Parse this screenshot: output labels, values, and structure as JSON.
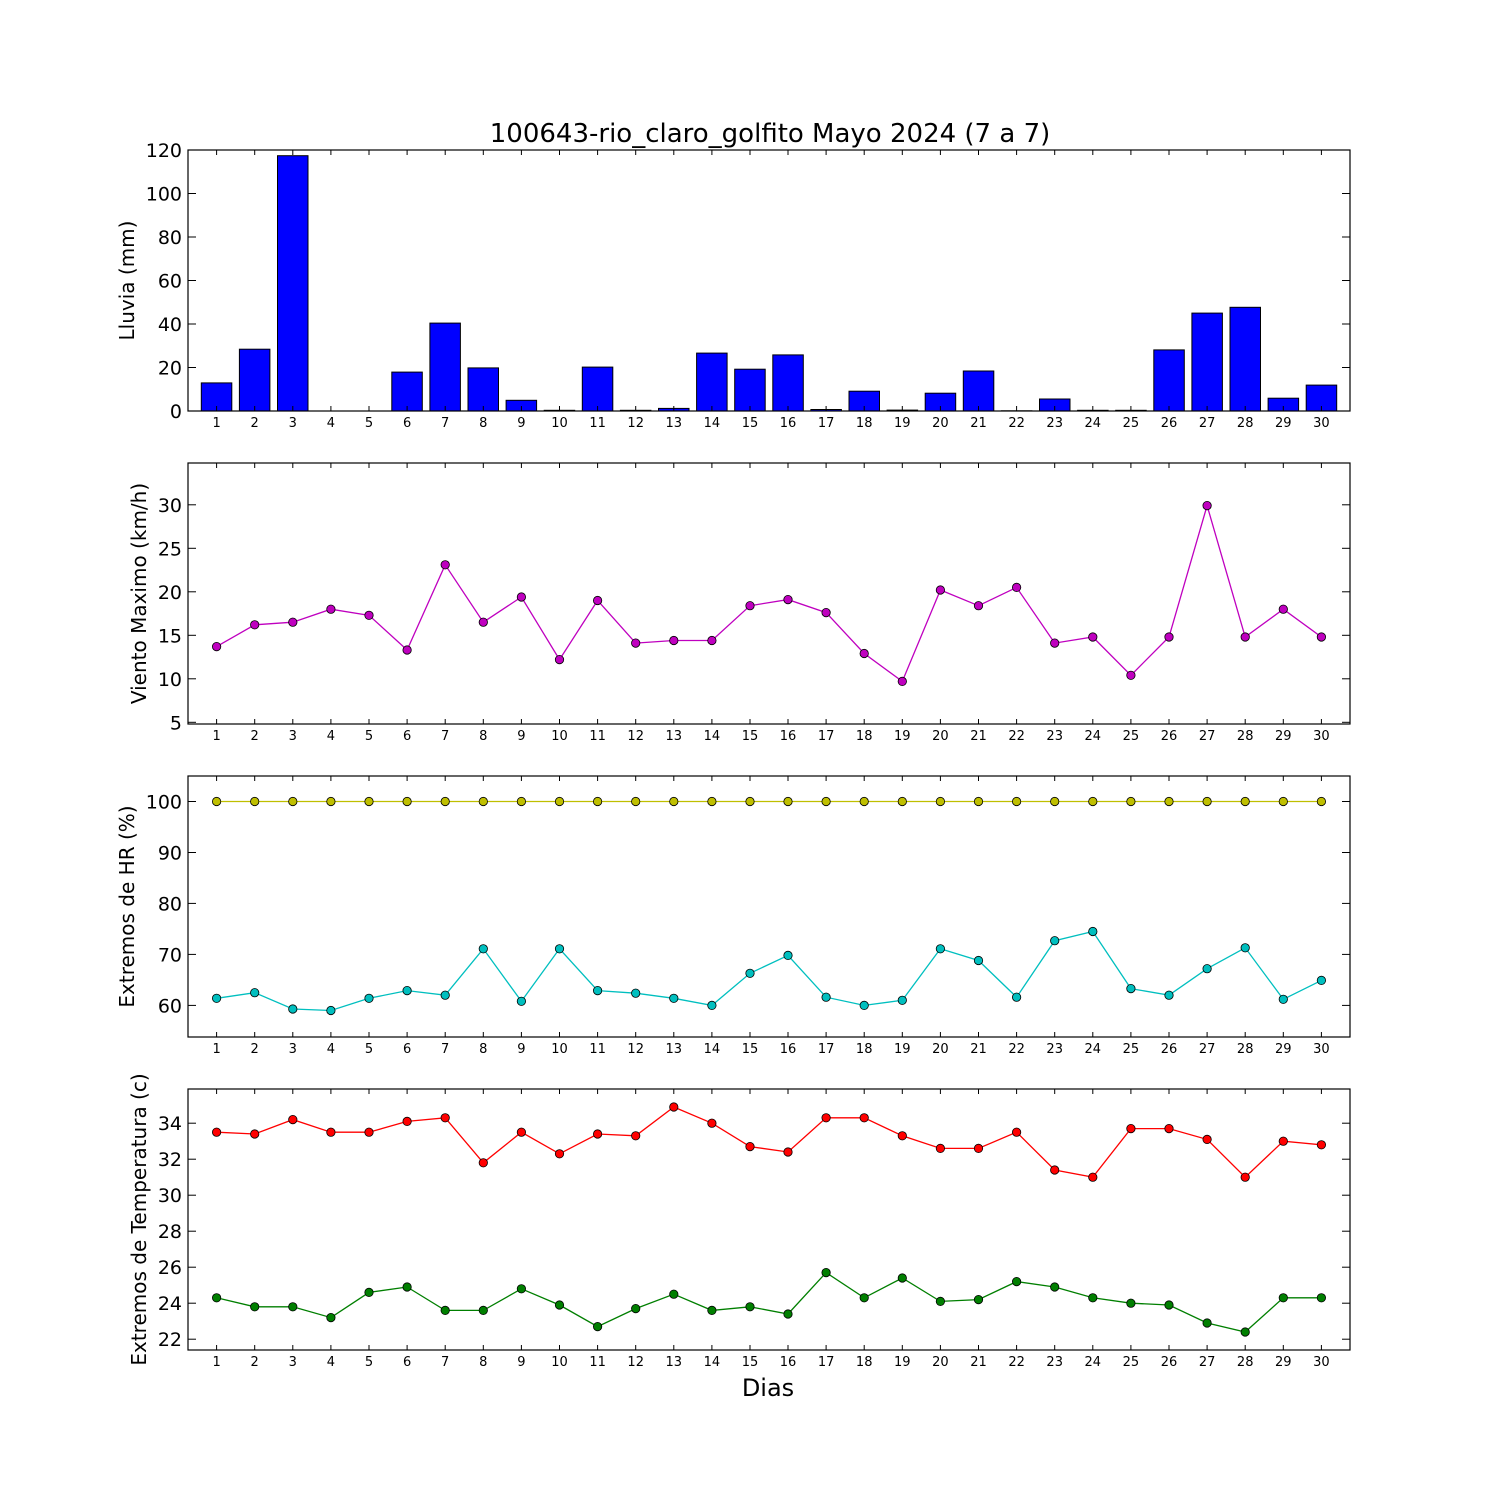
{
  "chart_data": [
    {
      "type": "bar",
      "title": "100643-rio_claro_golfito Mayo 2024  (7 a 7)",
      "xlabel": "",
      "ylabel": "Lluvia (mm)",
      "categories": [
        "1",
        "2",
        "3",
        "4",
        "5",
        "6",
        "7",
        "8",
        "9",
        "10",
        "11",
        "12",
        "13",
        "14",
        "15",
        "16",
        "17",
        "18",
        "19",
        "20",
        "21",
        "22",
        "23",
        "24",
        "25",
        "26",
        "27",
        "28",
        "29",
        "30"
      ],
      "values": [
        12.9,
        28.4,
        117.4,
        0.0,
        0.0,
        17.9,
        40.4,
        19.8,
        4.9,
        0.3,
        20.2,
        0.3,
        1.2,
        26.6,
        19.2,
        25.8,
        0.7,
        9.1,
        0.4,
        8.2,
        18.4,
        0.1,
        5.5,
        0.3,
        0.3,
        28.1,
        45.0,
        47.7,
        5.9,
        11.9
      ],
      "ylim": [
        0,
        120
      ],
      "yticks": [
        "0",
        "20",
        "40",
        "60",
        "80",
        "100",
        "120"
      ],
      "color": "#0000ff"
    },
    {
      "type": "line",
      "xlabel": "",
      "ylabel": "Viento Maximo (km/h)",
      "categories": [
        "1",
        "2",
        "3",
        "4",
        "5",
        "6",
        "7",
        "8",
        "9",
        "10",
        "11",
        "12",
        "13",
        "14",
        "15",
        "16",
        "17",
        "18",
        "19",
        "20",
        "21",
        "22",
        "23",
        "24",
        "25",
        "26",
        "27",
        "28",
        "29",
        "30"
      ],
      "values": [
        13.7,
        16.2,
        16.5,
        18.0,
        17.3,
        13.3,
        23.1,
        16.5,
        19.4,
        12.2,
        19.0,
        14.1,
        14.4,
        14.4,
        18.4,
        19.1,
        17.6,
        12.9,
        9.7,
        20.2,
        18.4,
        20.5,
        14.1,
        14.8,
        10.4,
        14.8,
        29.9,
        14.8,
        18.0,
        14.8
      ],
      "ylim": [
        4.8,
        34.8
      ],
      "yticks": [
        "5",
        "10",
        "15",
        "20",
        "25",
        "30"
      ],
      "color": "#bf00bf"
    },
    {
      "type": "line",
      "xlabel": "",
      "ylabel": "Extremos de HR (%)",
      "categories": [
        "1",
        "2",
        "3",
        "4",
        "5",
        "6",
        "7",
        "8",
        "9",
        "10",
        "11",
        "12",
        "13",
        "14",
        "15",
        "16",
        "17",
        "18",
        "19",
        "20",
        "21",
        "22",
        "23",
        "24",
        "25",
        "26",
        "27",
        "28",
        "29",
        "30"
      ],
      "series": [
        {
          "values": [
            100,
            100,
            100,
            100,
            100,
            100,
            100,
            100,
            100,
            100,
            100,
            100,
            100,
            100,
            100,
            100,
            100,
            100,
            100,
            100,
            100,
            100,
            100,
            100,
            100,
            100,
            100,
            100,
            100,
            100
          ],
          "color": "#bfbf00"
        },
        {
          "values": [
            61.4,
            62.5,
            59.3,
            59.0,
            61.4,
            62.9,
            62.0,
            71.1,
            60.8,
            71.1,
            62.9,
            62.4,
            61.4,
            60.0,
            66.3,
            69.8,
            61.6,
            60.0,
            61.0,
            71.1,
            68.8,
            61.6,
            72.7,
            74.5,
            63.3,
            62.0,
            67.2,
            71.3,
            61.2,
            64.9
          ],
          "color": "#00bfbf"
        }
      ],
      "ylim": [
        53.8,
        105.0
      ],
      "yticks": [
        "60",
        "70",
        "80",
        "90",
        "100"
      ]
    },
    {
      "type": "line",
      "xlabel": "Dias",
      "ylabel": "Extremos de Temperatura (c)",
      "categories": [
        "1",
        "2",
        "3",
        "4",
        "5",
        "6",
        "7",
        "8",
        "9",
        "10",
        "11",
        "12",
        "13",
        "14",
        "15",
        "16",
        "17",
        "18",
        "19",
        "20",
        "21",
        "22",
        "23",
        "24",
        "25",
        "26",
        "27",
        "28",
        "29",
        "30"
      ],
      "series": [
        {
          "values": [
            33.5,
            33.4,
            34.2,
            33.5,
            33.5,
            34.1,
            34.3,
            31.8,
            33.5,
            32.3,
            33.4,
            33.3,
            34.9,
            34.0,
            32.7,
            32.4,
            34.3,
            34.3,
            33.3,
            32.6,
            32.6,
            33.5,
            31.4,
            31.0,
            33.7,
            33.7,
            33.1,
            31.0,
            33.0,
            32.8
          ],
          "color": "#ff0000"
        },
        {
          "values": [
            24.3,
            23.8,
            23.8,
            23.2,
            24.6,
            24.9,
            23.6,
            23.6,
            24.8,
            23.9,
            22.7,
            23.7,
            24.5,
            23.6,
            23.8,
            23.4,
            25.7,
            24.3,
            25.4,
            24.1,
            24.2,
            25.2,
            24.9,
            24.3,
            24.0,
            23.9,
            22.9,
            22.4,
            24.3,
            24.3
          ],
          "color": "#007f00"
        }
      ],
      "ylim": [
        21.4,
        35.9
      ],
      "yticks": [
        "22",
        "24",
        "26",
        "28",
        "30",
        "32",
        "34"
      ]
    }
  ]
}
